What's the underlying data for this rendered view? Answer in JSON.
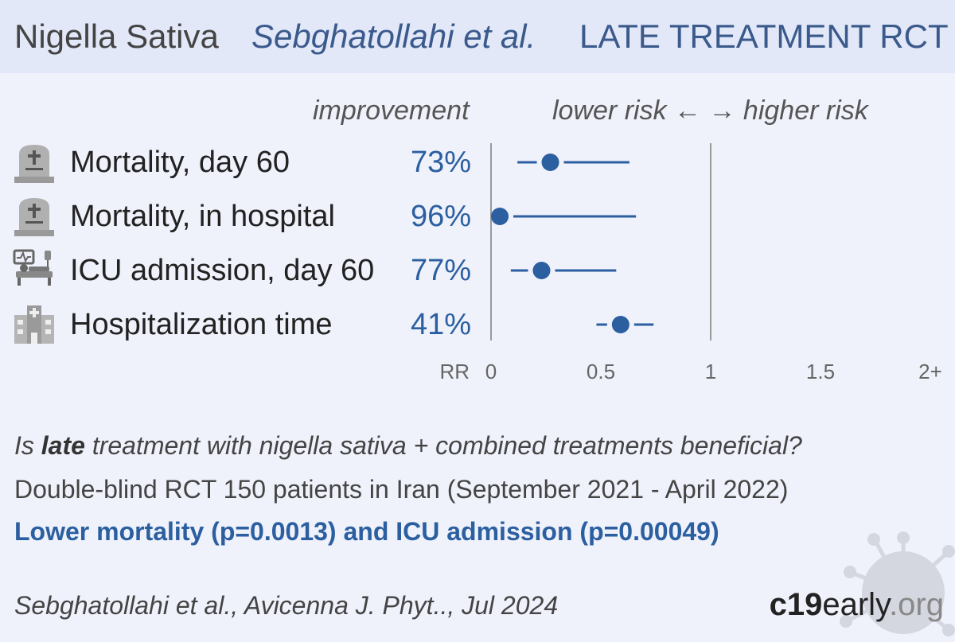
{
  "header": {
    "drug": "Nigella Sativa",
    "author": "Sebghatollahi et al.",
    "type": "LATE TREATMENT RCT"
  },
  "columns": {
    "improvement": "improvement",
    "risk": "lower risk ← → higher risk"
  },
  "chart_data": {
    "type": "forest",
    "x_axis_label": "RR",
    "xlim": [
      0,
      2
    ],
    "ticks": [
      {
        "value": 0,
        "label": "0"
      },
      {
        "value": 0.5,
        "label": "0.5"
      },
      {
        "value": 1,
        "label": "1"
      },
      {
        "value": 1.5,
        "label": "1.5"
      },
      {
        "value": 2,
        "label": "2+"
      }
    ],
    "reference_line": 1,
    "rows": [
      {
        "label": "Mortality, day 60",
        "improvement": "73%",
        "rr": 0.27,
        "ci_low": 0.12,
        "ci_high": 0.63,
        "icon": "gravestone-icon",
        "color": "#2b5fa0"
      },
      {
        "label": "Mortality, in hospital",
        "improvement": "96%",
        "rr": 0.04,
        "ci_low": 0.0,
        "ci_high": 0.66,
        "icon": "gravestone-icon",
        "color": "#2b5fa0"
      },
      {
        "label": "ICU admission, day 60",
        "improvement": "77%",
        "rr": 0.23,
        "ci_low": 0.09,
        "ci_high": 0.57,
        "icon": "icu-bed-icon",
        "color": "#2b5fa0"
      },
      {
        "label": "Hospitalization time",
        "improvement": "41%",
        "rr": 0.59,
        "ci_low": 0.48,
        "ci_high": 0.74,
        "icon": "hospital-building-icon",
        "color": "#2b5fa0"
      }
    ]
  },
  "footer": {
    "question_pre": "Is ",
    "question_bold": "late",
    "question_post": " treatment with nigella sativa + combined treatments beneficial?",
    "design": "Double-blind RCT 150 patients in Iran (September 2021 - April 2022)",
    "result": "Lower mortality (p=0.0013) and ICU admission (p=0.00049)",
    "citation": "Sebghatollahi et al., Avicenna J. Phyt.., Jul 2024",
    "logo_a": "c19",
    "logo_b": "early",
    "logo_c": ".org"
  },
  "colors": {
    "accent": "#2b5fa0",
    "header_bg": "#e3e8f8",
    "page_bg": "#eff1fb"
  }
}
